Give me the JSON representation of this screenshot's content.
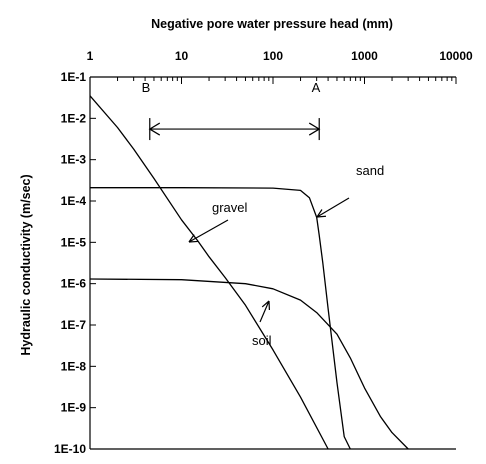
{
  "chart_data": {
    "type": "line",
    "xlabel": "Negative pore water pressure head (mm)",
    "ylabel": "Hydraulic conductivity (m/sec)",
    "xscale": "log",
    "yscale": "log",
    "xlim": [
      1,
      10000
    ],
    "ylim": [
      1e-10,
      0.1
    ],
    "x_ticks": [
      {
        "value": 1,
        "label": "1"
      },
      {
        "value": 10,
        "label": "10"
      },
      {
        "value": 100,
        "label": "100"
      },
      {
        "value": 1000,
        "label": "1000"
      },
      {
        "value": 10000,
        "label": "10000"
      }
    ],
    "y_ticks": [
      {
        "value": 0.1,
        "label": "1E-1"
      },
      {
        "value": 0.01,
        "label": "1E-2"
      },
      {
        "value": 0.001,
        "label": "1E-3"
      },
      {
        "value": 0.0001,
        "label": "1E-4"
      },
      {
        "value": 1e-05,
        "label": "1E-5"
      },
      {
        "value": 1e-06,
        "label": "1E-6"
      },
      {
        "value": 1e-07,
        "label": "1E-7"
      },
      {
        "value": 1e-08,
        "label": "1E-8"
      },
      {
        "value": 1e-09,
        "label": "1E-9"
      },
      {
        "value": 1e-10,
        "label": "1E-10"
      }
    ],
    "x_axis_position": "top",
    "grid": false,
    "series": [
      {
        "name": "gravel",
        "x": [
          1,
          2,
          3,
          5,
          10,
          15,
          20,
          30,
          50,
          100,
          200,
          400
        ],
        "y": [
          0.035,
          0.006,
          0.0018,
          0.00035,
          3.5e-05,
          1.1e-05,
          4.5e-06,
          1.4e-06,
          3e-07,
          2.5e-08,
          1.8e-09,
          1e-10
        ]
      },
      {
        "name": "sand",
        "x": [
          1,
          10,
          100,
          200,
          250,
          300,
          320,
          350,
          400,
          500,
          600,
          700
        ],
        "y": [
          0.00021,
          0.00021,
          0.000205,
          0.00018,
          0.00012,
          4e-05,
          1.5e-05,
          3.2e-06,
          2.5e-07,
          4e-09,
          2e-10,
          1e-10
        ]
      },
      {
        "name": "soil",
        "x": [
          1,
          10,
          50,
          100,
          200,
          300,
          500,
          700,
          1000,
          1500,
          2000,
          3000
        ],
        "y": [
          1.3e-06,
          1.25e-06,
          1e-06,
          7.5e-07,
          4e-07,
          2e-07,
          6e-08,
          1.6e-08,
          3e-09,
          6e-10,
          2.5e-10,
          1e-10
        ]
      }
    ],
    "annotations": [
      {
        "text": "gravel"
      },
      {
        "text": "sand"
      },
      {
        "text": "soil"
      },
      {
        "text": "A"
      },
      {
        "text": "B"
      }
    ],
    "range_arrow": {
      "from_x": 4.5,
      "to_x": 320,
      "y": 0.0055
    }
  }
}
